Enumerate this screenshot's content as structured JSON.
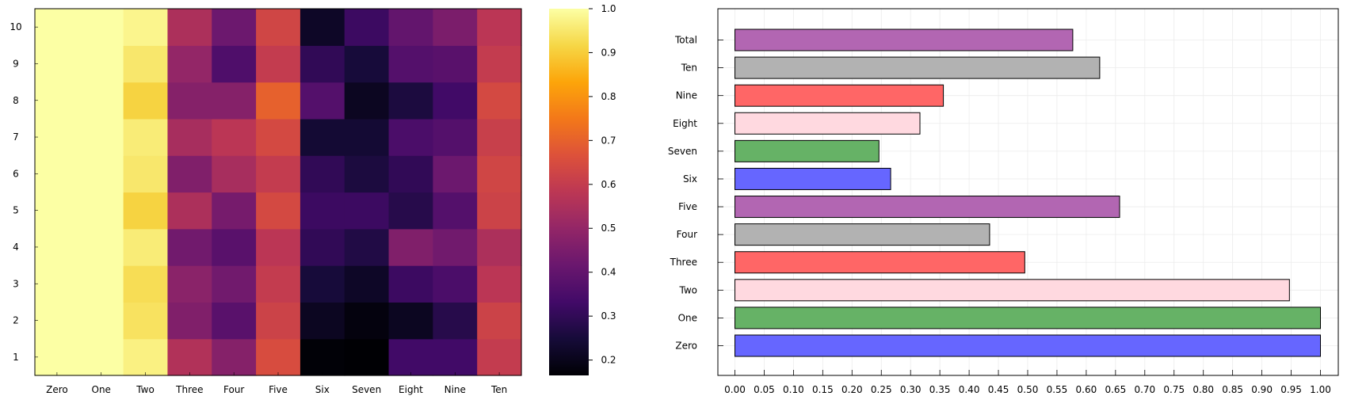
{
  "chart_data": [
    {
      "type": "heatmap",
      "x_categories": [
        "Zero",
        "One",
        "Two",
        "Three",
        "Four",
        "Five",
        "Six",
        "Seven",
        "Eight",
        "Nine",
        "Ten"
      ],
      "y_categories": [
        "1",
        "2",
        "3",
        "4",
        "5",
        "6",
        "7",
        "8",
        "9",
        "10"
      ],
      "values": [
        [
          1.0,
          1.0,
          0.97,
          0.56,
          0.47,
          0.65,
          0.17,
          0.16,
          0.33,
          0.33,
          0.6
        ],
        [
          1.0,
          1.0,
          0.94,
          0.46,
          0.38,
          0.62,
          0.21,
          0.18,
          0.21,
          0.28,
          0.62
        ],
        [
          1.0,
          1.0,
          0.93,
          0.48,
          0.43,
          0.6,
          0.25,
          0.22,
          0.32,
          0.35,
          0.58
        ],
        [
          1.0,
          1.0,
          0.96,
          0.43,
          0.38,
          0.58,
          0.3,
          0.27,
          0.46,
          0.43,
          0.55
        ],
        [
          1.0,
          1.0,
          0.91,
          0.55,
          0.44,
          0.64,
          0.32,
          0.32,
          0.28,
          0.37,
          0.62
        ],
        [
          1.0,
          1.0,
          0.95,
          0.46,
          0.54,
          0.6,
          0.3,
          0.26,
          0.3,
          0.42,
          0.63
        ],
        [
          1.0,
          1.0,
          0.96,
          0.54,
          0.58,
          0.64,
          0.24,
          0.24,
          0.35,
          0.37,
          0.61
        ],
        [
          1.0,
          1.0,
          0.91,
          0.47,
          0.47,
          0.7,
          0.37,
          0.21,
          0.26,
          0.33,
          0.64
        ],
        [
          1.0,
          1.0,
          0.95,
          0.5,
          0.36,
          0.6,
          0.3,
          0.25,
          0.37,
          0.38,
          0.6
        ],
        [
          1.0,
          1.0,
          0.98,
          0.55,
          0.42,
          0.63,
          0.22,
          0.32,
          0.4,
          0.45,
          0.58
        ]
      ],
      "colorbar": {
        "min": 0.165,
        "max": 1.0,
        "ticks": [
          "0.2",
          "0.3",
          "0.4",
          "0.5",
          "0.6",
          "0.7",
          "0.8",
          "0.9",
          "1.0"
        ],
        "colormap": "inferno"
      }
    },
    {
      "type": "bar",
      "orientation": "horizontal",
      "categories": [
        "Zero",
        "One",
        "Two",
        "Three",
        "Four",
        "Five",
        "Six",
        "Seven",
        "Eight",
        "Nine",
        "Ten",
        "Total"
      ],
      "values": [
        1.0,
        1.0,
        0.947,
        0.495,
        0.435,
        0.657,
        0.266,
        0.246,
        0.316,
        0.356,
        0.623,
        0.577
      ],
      "colors": [
        "#6666ff",
        "#66b266",
        "#ffd9e0",
        "#ff6666",
        "#b2b2b2",
        "#b266b2",
        "#6666ff",
        "#66b266",
        "#ffd9e0",
        "#ff6666",
        "#b2b2b2",
        "#b266b2"
      ],
      "xlim": [
        0,
        1.0
      ],
      "x_ticks": [
        "0.00",
        "0.05",
        "0.10",
        "0.15",
        "0.20",
        "0.25",
        "0.30",
        "0.35",
        "0.40",
        "0.45",
        "0.50",
        "0.55",
        "0.60",
        "0.65",
        "0.70",
        "0.75",
        "0.80",
        "0.85",
        "0.90",
        "0.95",
        "1.00"
      ],
      "grid": true
    }
  ]
}
